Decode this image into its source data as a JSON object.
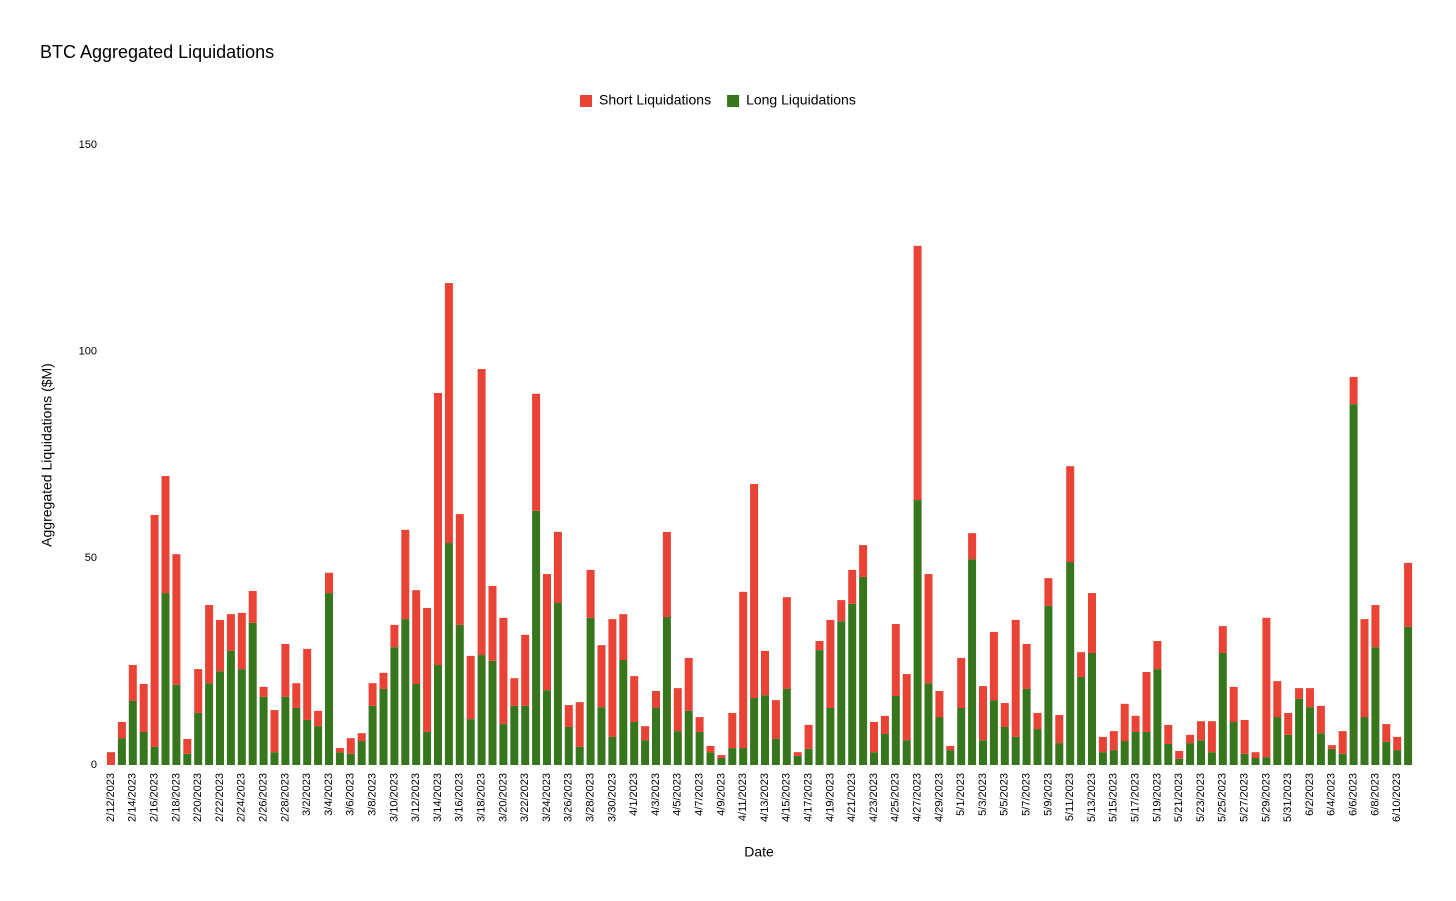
{
  "chart_data": {
    "type": "stacked_bar",
    "title": "BTC Aggregated Liquidations",
    "x_label": "Date",
    "y_label": "Aggregated Liquidations ($M)",
    "categories": [
      "2/12/2023",
      null,
      "2/14/2023",
      null,
      "2/16/2023",
      null,
      "2/18/2023",
      null,
      "2/20/2023",
      null,
      "2/22/2023",
      null,
      "2/24/2023",
      null,
      "2/26/2023",
      null,
      "2/28/2023",
      null,
      "3/2/2023",
      null,
      "3/4/2023",
      null,
      "3/6/2023",
      null,
      "3/8/2023",
      null,
      "3/10/2023",
      null,
      "3/12/2023",
      null,
      "3/14/2023",
      null,
      "3/16/2023",
      null,
      "3/18/2023",
      null,
      "3/20/2023",
      null,
      "3/22/2023",
      null,
      "3/24/2023",
      null,
      "3/26/2023",
      null,
      "3/28/2023",
      null,
      "3/30/2023",
      null,
      "4/1/2023",
      null,
      "4/3/2023",
      null,
      "4/5/2023",
      null,
      "4/7/2023",
      null,
      "4/9/2023",
      null,
      "4/11/2023",
      null,
      "4/13/2023",
      null,
      "4/15/2023",
      null,
      "4/17/2023",
      null,
      "4/19/2023",
      null,
      "4/21/2023",
      null,
      "4/23/2023",
      null,
      "4/25/2023",
      null,
      "4/27/2023",
      null,
      "4/29/2023",
      null,
      "5/1/2023",
      null,
      "5/3/2023",
      null,
      "5/5/2023",
      null,
      "5/7/2023",
      null,
      "5/9/2023",
      null,
      "5/11/2023",
      null,
      "5/13/2023",
      null,
      "5/15/2023",
      null,
      "5/17/2023",
      null,
      "5/19/2023",
      null,
      "5/21/2023",
      null,
      "5/23/2023",
      null,
      "5/25/2023",
      null,
      "5/27/2023",
      null,
      "5/29/2023",
      null,
      "5/31/2023",
      null,
      "6/2/2023",
      null,
      "6/4/2023",
      null,
      "6/6/2023",
      null,
      "6/8/2023",
      null,
      "6/10/2023",
      null
    ],
    "series": [
      {
        "name": "Short Liquidations",
        "color": "#e94335",
        "values": [
          3.1,
          3.9,
          8.7,
          11.6,
          56.1,
          28.3,
          31.6,
          3.6,
          10.6,
          18.9,
          12.4,
          8.9,
          13.6,
          7.7,
          2.4,
          10.2,
          12.8,
          6,
          17.2,
          3.7,
          4.9,
          1,
          3.8,
          1.9,
          5.5,
          3.9,
          5.4,
          21.6,
          22.7,
          30,
          65.8,
          62.9,
          26.8,
          15.3,
          69.2,
          18.1,
          25.7,
          6.7,
          17.2,
          28.3,
          28.1,
          17.2,
          5.3,
          10.8,
          11.6,
          15,
          28.5,
          11.1,
          11.1,
          3.4,
          4.1,
          20.6,
          10.4,
          12.8,
          3.6,
          1.5,
          0.7,
          8.5,
          37.8,
          51.8,
          10.7,
          9.4,
          22.2,
          0.9,
          5.8,
          2.2,
          21.3,
          5.1,
          8.2,
          7.7,
          7.3,
          4.4,
          17.4,
          16,
          61.5,
          26.4,
          6.3,
          1,
          12.1,
          6.3,
          13.1,
          16.5,
          5.8,
          28.3,
          10.9,
          3.9,
          6.7,
          6.8,
          23.2,
          6,
          14.5,
          3.7,
          4.6,
          9,
          3.9,
          14.5,
          6.8,
          4.6,
          1.9,
          2,
          4.6,
          7.5,
          6.5,
          8.5,
          8.2,
          1.4,
          33.7,
          8.7,
          5.3,
          2.6,
          4.6,
          6.6,
          0.9,
          5.5,
          6.6,
          23.7,
          10.2,
          4.3,
          3.2,
          15.5
        ]
      },
      {
        "name": "Long Liquidations",
        "color": "#38761d",
        "values": [
          0,
          6.5,
          15.5,
          8,
          4.4,
          41.6,
          19.4,
          2.7,
          12.6,
          19.8,
          22.7,
          27.6,
          23.2,
          34.4,
          16.5,
          3.1,
          16.5,
          13.8,
          10.9,
          9.4,
          41.6,
          3.1,
          2.7,
          5.8,
          14.3,
          18.4,
          28.5,
          35.3,
          19.6,
          8,
          24.2,
          53.7,
          33.9,
          11.1,
          26.6,
          25.2,
          9.9,
          14.3,
          14.3,
          61.5,
          18.1,
          39.2,
          9.2,
          4.4,
          35.6,
          14,
          6.8,
          25.4,
          10.4,
          6,
          13.8,
          35.8,
          8.2,
          13.1,
          8,
          3.1,
          1.7,
          4.1,
          4.1,
          16.2,
          16.9,
          6.3,
          18.4,
          2.2,
          3.9,
          27.8,
          13.8,
          34.8,
          39,
          45.5,
          3.1,
          7.5,
          16.7,
          6,
          64.1,
          19.8,
          11.6,
          3.6,
          13.8,
          49.8,
          6,
          15.7,
          9.2,
          6.8,
          18.4,
          8.7,
          38.5,
          5.3,
          49.1,
          21.3,
          27.1,
          3.1,
          3.6,
          5.8,
          8,
          8,
          23.2,
          5.1,
          1.5,
          5.3,
          6,
          3.1,
          27.1,
          10.4,
          2.7,
          1.7,
          1.9,
          11.6,
          7.3,
          16,
          14,
          7.7,
          3.9,
          2.7,
          87.3,
          11.6,
          28.5,
          5.6,
          3.6,
          33.4
        ]
      }
    ],
    "ylim": [
      0,
      150
    ],
    "yticks": [
      0,
      50,
      100,
      150
    ],
    "grid": false,
    "legend": "top"
  }
}
